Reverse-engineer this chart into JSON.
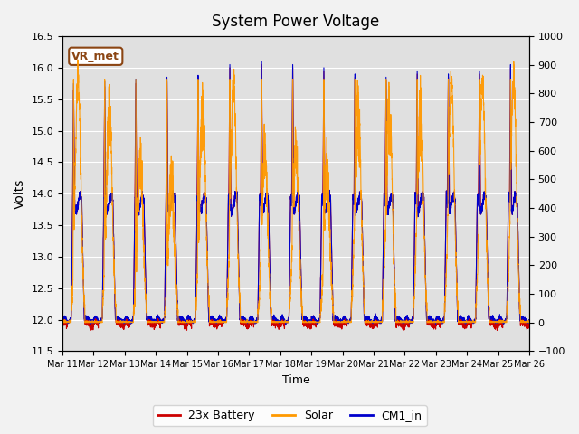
{
  "title": "System Power Voltage",
  "xlabel": "Time",
  "ylabel_left": "Volts",
  "ylim_left": [
    11.5,
    16.5
  ],
  "ylim_right": [
    -100,
    1000
  ],
  "yticks_left": [
    11.5,
    12.0,
    12.5,
    13.0,
    13.5,
    14.0,
    14.5,
    15.0,
    15.5,
    16.0,
    16.5
  ],
  "yticks_right": [
    -100,
    0,
    100,
    200,
    300,
    400,
    500,
    600,
    700,
    800,
    900,
    1000
  ],
  "xtick_labels": [
    "Mar 11",
    "Mar 12",
    "Mar 13",
    "Mar 14",
    "Mar 15",
    "Mar 16",
    "Mar 17",
    "Mar 18",
    "Mar 19",
    "Mar 20",
    "Mar 21",
    "Mar 22",
    "Mar 23",
    "Mar 24",
    "Mar 25",
    "Mar 26"
  ],
  "n_days": 15,
  "legend_labels": [
    "23x Battery",
    "Solar",
    "CM1_in"
  ],
  "legend_colors": [
    "#cc0000",
    "#ff9900",
    "#0000cc"
  ],
  "annotation_text": "VR_met",
  "annotation_color": "#8B4513",
  "background_color": "#e0e0e0",
  "grid_color": "#ffffff",
  "line_colors": {
    "battery": "#cc0000",
    "solar": "#ff9900",
    "cm1": "#0000cc"
  }
}
